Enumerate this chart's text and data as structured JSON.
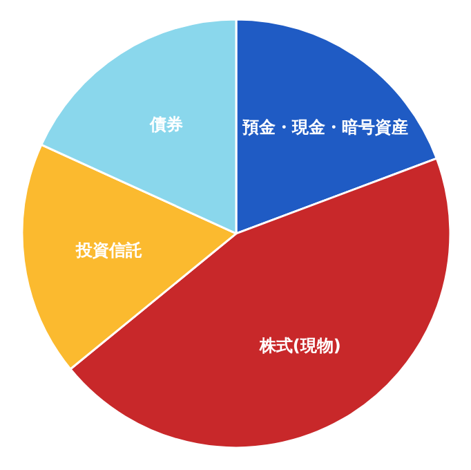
{
  "chart_data": {
    "type": "pie",
    "categories": [
      "預金・現金・暗号資産",
      "株式(現物)",
      "投資信託",
      "債券"
    ],
    "values": [
      19.3,
      44.8,
      17.7,
      18.2
    ],
    "colors": [
      "#1f5bc4",
      "#c8282a",
      "#fbba2f",
      "#8ad7ec"
    ],
    "data_labels": false
  }
}
